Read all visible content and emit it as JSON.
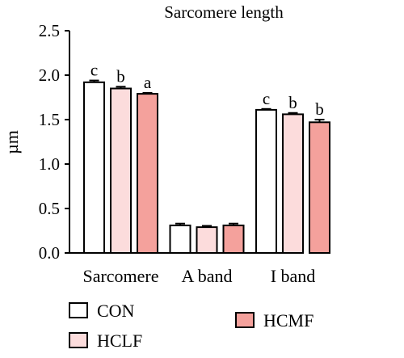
{
  "chart_data": {
    "type": "bar",
    "title": "Sarcomere length",
    "ylabel": "µm",
    "xlabel": "",
    "ylim": [
      0,
      2.5
    ],
    "yticks": [
      "0.0",
      "0.5",
      "1.0",
      "1.5",
      "2.0",
      "2.5"
    ],
    "categories": [
      "Sarcomere",
      "A band",
      "I band"
    ],
    "series": [
      {
        "name": "CON",
        "color": "#ffffff",
        "values": [
          1.92,
          0.31,
          1.61
        ],
        "errors": [
          0.02,
          0.02,
          0.01
        ],
        "labels": [
          "c",
          "",
          "c"
        ]
      },
      {
        "name": "HCLF",
        "color": "#fcdcdc",
        "values": [
          1.85,
          0.29,
          1.56
        ],
        "errors": [
          0.02,
          0.015,
          0.015
        ],
        "labels": [
          "b",
          "",
          "b"
        ]
      },
      {
        "name": "HCMF",
        "color": "#f4a19c",
        "values": [
          1.79,
          0.31,
          1.47
        ],
        "errors": [
          0.01,
          0.02,
          0.03
        ],
        "labels": [
          "a",
          "",
          "b"
        ]
      }
    ],
    "legend_position": "bottom"
  }
}
